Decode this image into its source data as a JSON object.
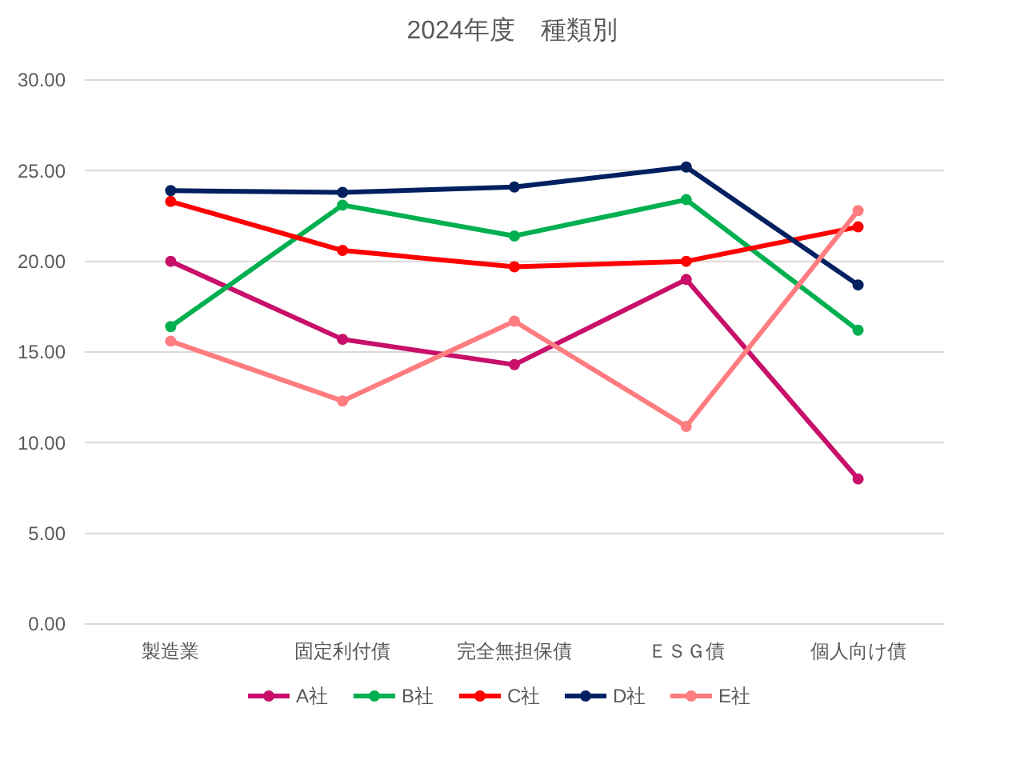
{
  "chart_data": {
    "type": "line",
    "title": "2024年度　種類別",
    "categories": [
      "製造業",
      "固定利付債",
      "完全無担保債",
      "ＥＳＧ債",
      "個人向け債"
    ],
    "series": [
      {
        "name": "A社",
        "color": "#c8106a",
        "values": [
          20.0,
          15.7,
          14.3,
          19.0,
          8.0
        ]
      },
      {
        "name": "B社",
        "color": "#00b050",
        "values": [
          16.4,
          23.1,
          21.4,
          23.4,
          16.2
        ]
      },
      {
        "name": "C社",
        "color": "#ff0000",
        "values": [
          23.3,
          20.6,
          19.7,
          20.0,
          21.9
        ]
      },
      {
        "name": "D社",
        "color": "#002060",
        "values": [
          23.9,
          23.8,
          24.1,
          25.2,
          18.7
        ]
      },
      {
        "name": "E社",
        "color": "#ff7c80",
        "values": [
          15.6,
          12.3,
          16.7,
          10.9,
          22.8
        ]
      }
    ],
    "ylim": [
      0,
      30
    ],
    "yticks": [
      {
        "value": 0,
        "label": "0.00"
      },
      {
        "value": 5,
        "label": "5.00"
      },
      {
        "value": 10,
        "label": "10.00"
      },
      {
        "value": 15,
        "label": "15.00"
      },
      {
        "value": 20,
        "label": "20.00"
      },
      {
        "value": 25,
        "label": "25.00"
      },
      {
        "value": 30,
        "label": "30.00"
      }
    ],
    "grid": "y",
    "legend": "bottom",
    "marker": "circle",
    "line_style": "solid"
  }
}
